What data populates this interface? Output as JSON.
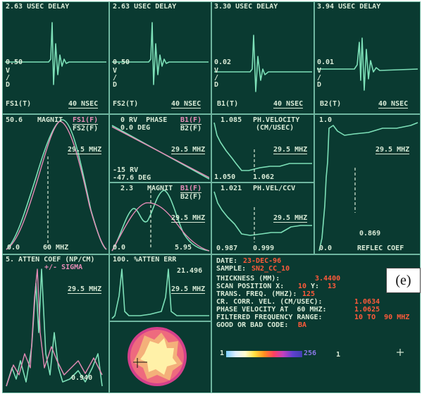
{
  "label": "(e)",
  "top_panels": [
    {
      "title": "2.63 USEC DELAY",
      "amp": "0.50",
      "vd": "V\n/\nD",
      "channel": "FS1(T)",
      "time": "40 NSEC"
    },
    {
      "title": "2.63 USEC DELAY",
      "amp": "0.50",
      "vd": "V\n/\nD",
      "channel": "FS2(T)",
      "time": "40 NSEC"
    },
    {
      "title": "3.30 USEC DELAY",
      "amp": "0.02",
      "vd": "V\n/\nD",
      "channel": "B1(T)",
      "time": "40 NSEC"
    },
    {
      "title": "3.94 USEC DELAY",
      "amp": "0.01",
      "vd": "V\n/\nD",
      "channel": "B2(T)",
      "time": "40 NSEC"
    }
  ],
  "magnit": {
    "top": "50.6",
    "title": "MAGNIT",
    "ch1": "FS1(F)",
    "ch2": "FS2(F)",
    "freq": "29.5 MHZ",
    "zero": "0.0",
    "xmax": "60 MHZ"
  },
  "phase": {
    "line1": "0 RV  PHASE",
    "line2": "0.0 DEG",
    "ch1": "B1(F)",
    "ch2": "B2(F)",
    "freq": "29.5 MHZ",
    "low1": "-15 RV",
    "low2": "-47.6 DEG"
  },
  "magnit2": {
    "top": "2.3",
    "title": "MAGNIT",
    "ch1": "B1(F)",
    "ch2": "B2(F)",
    "freq": "29.5 MHZ",
    "zero": "0.0",
    "low": "5.95"
  },
  "ph_velocity": {
    "top": "1.085",
    "title": "PH.VELOCITY",
    "units": "(CM/USEC)",
    "freq": "29.5 MHZ",
    "low": "1.050",
    "mid": "1.062"
  },
  "ph_vel_ccv": {
    "top": "1.021",
    "title": "PH.VEL/CCV",
    "freq": "29.5 MHZ",
    "low": "0.987",
    "mid": "0.999"
  },
  "reflec": {
    "top": "1.0",
    "freq": "29.5 MHZ",
    "mid": "0.869",
    "zero": "0.0",
    "title": "REFLEC COEF"
  },
  "atten": {
    "title": "5. ATTEN COEF (NP/CM)",
    "sub": "+/- SIGMA",
    "freq": "29.5 MHZ",
    "low": "0.940"
  },
  "atten_err": {
    "title": "100. %ATTEN ERR",
    "value": "21.496",
    "freq": "29.5 MHZ"
  },
  "info": {
    "date_label": "DATE:",
    "date": "23-DEC-96",
    "sample_label": "SAMPLE:",
    "sample": "SN2_CC_10",
    "thickness_label": "THICKNESS (MM):",
    "thickness": "3.4400",
    "scan_label": "SCAN POSITION X:",
    "scan_x": "10",
    "scan_y_label": "Y:",
    "scan_y": "13",
    "trans_label": "TRANS. FREQ. (MHZ):",
    "trans": "125",
    "ccv_label": "CR. CORR. VEL. (CM/USEC):",
    "ccv": "1.0634",
    "pv_label": "PHASE VELOCITY AT  60 MHZ:",
    "pv": "1.0625",
    "ffr_label": "FILTERED FREQUENCY RANGE:",
    "ffr": "10 TO  90 MHZ",
    "code_label": "GOOD OR BAD CODE:",
    "code": "BA"
  },
  "colorbar": {
    "min": "1",
    "max": "256",
    "right_label": "1"
  },
  "colors": {
    "background": "#0a3a31",
    "trace": "#7de0b8",
    "trace2": "#e58bb6",
    "grid": "#6fb6a0",
    "text": "#d8ead6",
    "accent": "#ff5a3a"
  }
}
